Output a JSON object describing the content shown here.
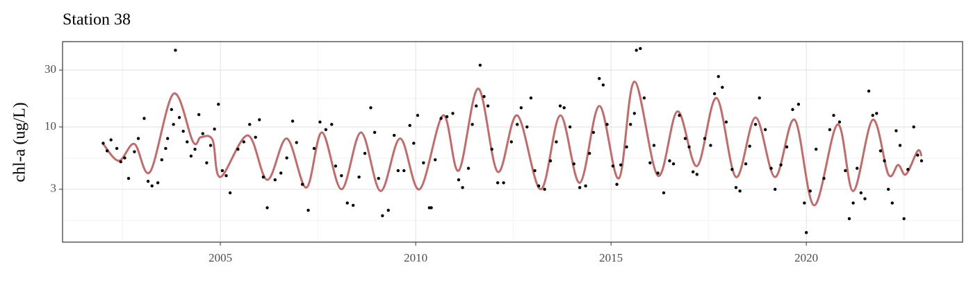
{
  "chart_data": {
    "type": "scatter",
    "title": "Station 38",
    "y_label": "chl-a (ug/L)",
    "xlim": [
      2000.96,
      2024.0
    ],
    "xticks": [
      2005,
      2010,
      2015,
      2020
    ],
    "xminorticks": [
      2002.5,
      2007.5,
      2012.5,
      2017.5,
      2022.5
    ],
    "ylim": [
      1.08,
      52
    ],
    "ylog": true,
    "yticks": [
      3,
      10,
      30
    ],
    "yminorticks": [
      1.64,
      5.48,
      17.3
    ],
    "grid": true,
    "points": {
      "color": "#000000",
      "x": [
        2002.0,
        2002.1,
        2002.2,
        2002.35,
        2002.45,
        2002.55,
        2002.65,
        2002.8,
        2002.9,
        2003.05,
        2003.15,
        2003.25,
        2003.4,
        2003.5,
        2003.6,
        2003.65,
        2003.75,
        2003.8,
        2003.85,
        2003.95,
        2004.05,
        2004.15,
        2004.25,
        2004.35,
        2004.45,
        2004.55,
        2004.65,
        2004.75,
        2004.85,
        2004.95,
        2005.05,
        2005.15,
        2005.25,
        2005.45,
        2005.6,
        2005.75,
        2005.9,
        2006.0,
        2006.1,
        2006.2,
        2006.4,
        2006.55,
        2006.7,
        2006.85,
        2006.95,
        2007.1,
        2007.25,
        2007.4,
        2007.55,
        2007.7,
        2007.85,
        2007.95,
        2008.1,
        2008.25,
        2008.4,
        2008.55,
        2008.7,
        2008.85,
        2008.95,
        2009.05,
        2009.15,
        2009.3,
        2009.45,
        2009.55,
        2009.7,
        2009.85,
        2009.95,
        2010.05,
        2010.2,
        2010.35,
        2010.4,
        2010.5,
        2010.65,
        2010.8,
        2010.95,
        2011.1,
        2011.2,
        2011.35,
        2011.45,
        2011.55,
        2011.65,
        2011.75,
        2011.85,
        2011.95,
        2012.1,
        2012.25,
        2012.45,
        2012.6,
        2012.7,
        2012.85,
        2012.95,
        2013.05,
        2013.15,
        2013.3,
        2013.45,
        2013.6,
        2013.7,
        2013.8,
        2013.95,
        2014.05,
        2014.2,
        2014.35,
        2014.45,
        2014.55,
        2014.7,
        2014.8,
        2014.9,
        2015.05,
        2015.15,
        2015.25,
        2015.4,
        2015.5,
        2015.6,
        2015.65,
        2015.75,
        2015.85,
        2016.0,
        2016.1,
        2016.2,
        2016.35,
        2016.5,
        2016.6,
        2016.75,
        2016.9,
        2017.0,
        2017.1,
        2017.2,
        2017.4,
        2017.55,
        2017.65,
        2017.75,
        2017.85,
        2017.95,
        2018.1,
        2018.2,
        2018.3,
        2018.45,
        2018.55,
        2018.7,
        2018.8,
        2018.95,
        2019.1,
        2019.2,
        2019.35,
        2019.5,
        2019.65,
        2019.8,
        2019.95,
        2020.0,
        2020.1,
        2020.25,
        2020.45,
        2020.6,
        2020.7,
        2020.85,
        2021.0,
        2021.1,
        2021.2,
        2021.3,
        2021.4,
        2021.5,
        2021.6,
        2021.7,
        2021.8,
        2021.9,
        2022.0,
        2022.1,
        2022.2,
        2022.3,
        2022.4,
        2022.5,
        2022.6,
        2022.75,
        2022.85,
        2022.95
      ],
      "y": [
        7.3,
        6.3,
        7.8,
        6.6,
        5.1,
        5.5,
        3.7,
        6.2,
        8.0,
        11.8,
        3.5,
        3.2,
        3.4,
        5.3,
        6.6,
        8.0,
        14,
        10.5,
        44,
        12,
        9.2,
        7.5,
        5.7,
        6.5,
        12.7,
        8.8,
        5.0,
        7.0,
        9.6,
        15.5,
        4.3,
        3.9,
        2.8,
        6.5,
        7.5,
        10.5,
        8.2,
        11.5,
        3.8,
        2.1,
        3.6,
        4.1,
        5.5,
        11.2,
        7.4,
        3.3,
        2.0,
        6.6,
        11,
        9.5,
        10.5,
        4.7,
        3.9,
        2.3,
        2.2,
        3.8,
        6.0,
        14.5,
        9.0,
        3.7,
        1.8,
        2.0,
        8.5,
        4.3,
        4.3,
        10.3,
        7.3,
        12.5,
        5.0,
        2.1,
        2.1,
        5.3,
        11.8,
        12.2,
        13,
        3.6,
        3.1,
        4.5,
        10.5,
        15,
        33,
        18,
        15,
        6.5,
        3.4,
        3.4,
        7.5,
        10.5,
        14.5,
        10,
        17.5,
        4.3,
        3.2,
        3.0,
        5.2,
        7.5,
        15,
        14.5,
        10,
        4.9,
        3.1,
        3.2,
        6.0,
        9.0,
        25.5,
        22.5,
        10.5,
        4.7,
        3.3,
        4.8,
        6.8,
        10.5,
        13.0,
        44,
        45.5,
        17.5,
        5.0,
        7.0,
        4.1,
        2.8,
        5.2,
        4.9,
        12.5,
        8.0,
        6.8,
        4.2,
        4.0,
        8.0,
        7.0,
        19,
        26.5,
        21.5,
        11,
        4.4,
        3.1,
        2.9,
        4.9,
        6.9,
        10.5,
        17.5,
        9.5,
        4.5,
        3.0,
        4.8,
        6.8,
        14,
        15.5,
        2.3,
        1.3,
        2.9,
        6.5,
        3.7,
        9.5,
        12.5,
        11,
        4.3,
        1.7,
        2.3,
        4.5,
        2.8,
        2.5,
        20,
        12.5,
        13,
        6.3,
        5.2,
        3.0,
        2.3,
        9.3,
        7.0,
        1.7,
        4.4,
        10.0,
        5.8,
        5.2
      ]
    },
    "trend": {
      "color": "#c46a6a",
      "x": [
        2002.0,
        2002.4,
        2002.8,
        2003.2,
        2003.8,
        2004.3,
        2004.5,
        2004.8,
        2005.0,
        2005.7,
        2006.2,
        2006.7,
        2007.2,
        2007.6,
        2008.1,
        2008.6,
        2009.1,
        2009.6,
        2010.1,
        2010.7,
        2011.1,
        2011.6,
        2012.1,
        2012.6,
        2013.2,
        2013.7,
        2014.2,
        2014.7,
        2015.2,
        2015.6,
        2016.2,
        2016.7,
        2017.2,
        2017.7,
        2018.2,
        2018.7,
        2019.2,
        2019.7,
        2020.2,
        2020.8,
        2021.2,
        2021.7,
        2022.1,
        2022.35,
        2022.55,
        2022.85,
        2022.95
      ],
      "y": [
        7.2,
        5.2,
        7.2,
        4.2,
        19,
        7.5,
        8.2,
        7.8,
        3.8,
        8.5,
        3.6,
        8,
        3.1,
        9,
        3.0,
        9,
        2.9,
        8,
        3.0,
        12.5,
        4.3,
        21,
        4.2,
        12.5,
        3.0,
        12.5,
        3.4,
        15,
        3.7,
        24,
        3.9,
        13.5,
        4.7,
        17.5,
        3.8,
        12,
        3.8,
        11.5,
        2.2,
        10.5,
        2.9,
        11.5,
        4.0,
        4.8,
        4.0,
        6.3,
        5.7
      ]
    }
  }
}
